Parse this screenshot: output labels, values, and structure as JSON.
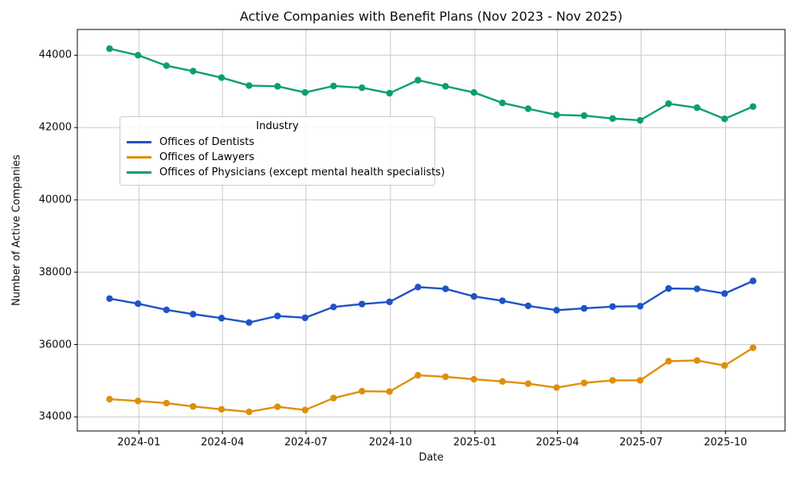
{
  "title": "Active Companies with Benefit Plans (Nov 2023 - Nov 2025)",
  "axes": {
    "xlabel": "Date",
    "ylabel": "Number of Active Companies"
  },
  "legend": {
    "title": "Industry",
    "position": "upper-left-inside"
  },
  "colors": {
    "dentists": "#1f53c5",
    "lawyers": "#de8f0a",
    "physicians": "#0a9e74",
    "grid": "#c9c9c9",
    "spine": "#000000"
  },
  "chart_data": {
    "type": "line",
    "x": [
      "2023-11",
      "2023-12",
      "2024-01",
      "2024-02",
      "2024-03",
      "2024-04",
      "2024-05",
      "2024-06",
      "2024-07",
      "2024-08",
      "2024-09",
      "2024-10",
      "2024-11",
      "2024-12",
      "2025-01",
      "2025-02",
      "2025-03",
      "2025-04",
      "2025-05",
      "2025-06",
      "2025-07",
      "2025-08",
      "2025-09",
      "2025-10"
    ],
    "x_note": "monthly values plotted at month-end dates",
    "series": [
      {
        "name": "Offices of Dentists",
        "color": "#1f53c5",
        "values": [
          37270,
          37130,
          36960,
          36840,
          36730,
          36610,
          36790,
          36740,
          37040,
          37120,
          37180,
          37590,
          37540,
          37330,
          37210,
          37070,
          36950,
          37000,
          37050,
          37060,
          37550,
          37540,
          37410,
          37760
        ]
      },
      {
        "name": "Offices of Lawyers",
        "color": "#de8f0a",
        "values": [
          34490,
          34440,
          34380,
          34290,
          34210,
          34140,
          34280,
          34190,
          34520,
          34710,
          34700,
          35150,
          35110,
          35040,
          34980,
          34920,
          34810,
          34940,
          35010,
          35010,
          35540,
          35560,
          35420,
          35910
        ]
      },
      {
        "name": "Offices of Physicians (except mental health specialists)",
        "color": "#0a9e74",
        "values": [
          44180,
          44000,
          43710,
          43560,
          43380,
          43160,
          43140,
          42970,
          43150,
          43100,
          42950,
          43310,
          43140,
          42970,
          42680,
          42520,
          42350,
          42330,
          42250,
          42200,
          42660,
          42550,
          42240,
          42580
        ]
      }
    ],
    "x_ticks": [
      "2024-01",
      "2024-04",
      "2024-07",
      "2024-10",
      "2025-01",
      "2025-04",
      "2025-07",
      "2025-10"
    ],
    "y_ticks": [
      34000,
      36000,
      38000,
      40000,
      42000,
      44000
    ],
    "ylim": [
      33610,
      44710
    ],
    "grid": true,
    "legend_position": "upper left"
  }
}
